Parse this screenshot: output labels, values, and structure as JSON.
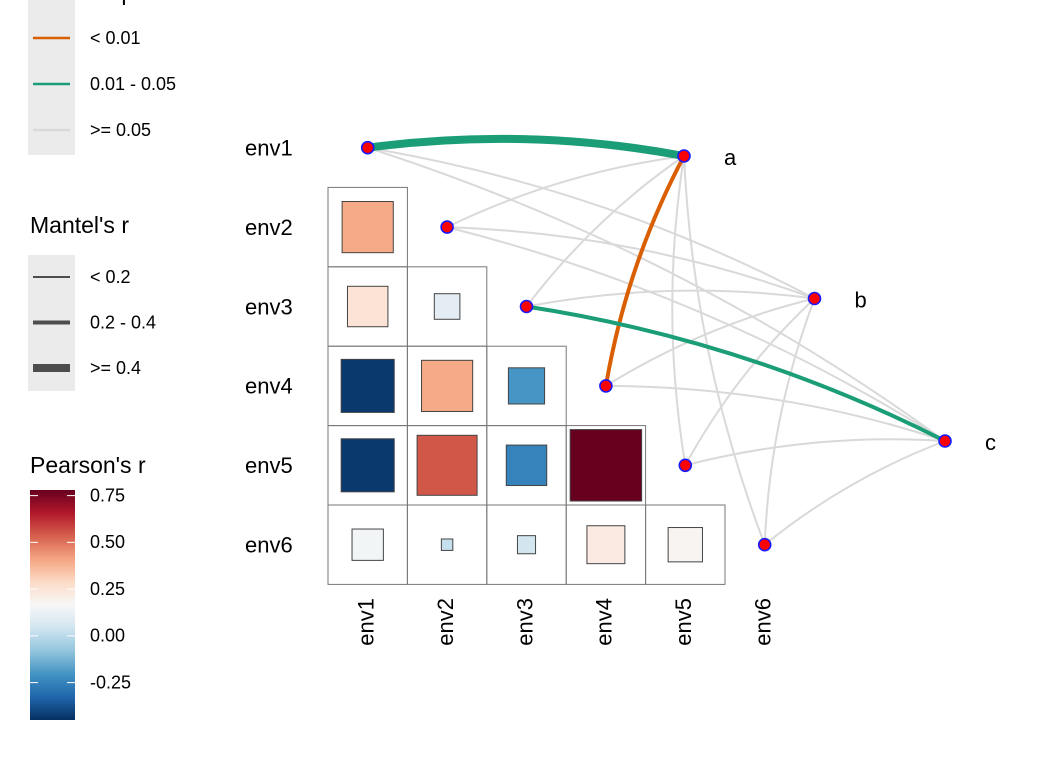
{
  "chart_data": {
    "type": "correlogram",
    "rows": [
      "env1",
      "env2",
      "env3",
      "env4",
      "env5",
      "env6"
    ],
    "columns": [
      "env1",
      "env2",
      "env3",
      "env4",
      "env5",
      "env6"
    ],
    "values": [
      [
        null,
        null,
        null,
        null,
        null,
        null
      ],
      [
        0.4,
        null,
        null,
        null,
        null,
        null
      ],
      [
        0.25,
        0.1,
        null,
        null,
        null,
        null
      ],
      [
        -0.43,
        0.4,
        -0.2,
        null,
        null,
        null
      ],
      [
        -0.43,
        0.55,
        -0.25,
        0.78,
        null,
        null
      ],
      [
        0.15,
        0.02,
        0.05,
        0.22,
        0.18,
        null
      ]
    ],
    "colorbar": {
      "title": "Pearson's r",
      "lim": [
        -0.45,
        0.78
      ],
      "ticks": [
        0.75,
        {
          "value": 0.5,
          "label": "0.50"
        },
        0.25,
        {
          "value": 0,
          "label": "0.00"
        },
        -0.25
      ],
      "colors": [
        "#053061",
        "#2166ac",
        "#4393c3",
        "#92c5de",
        "#d1e5f0",
        "#f7f7f7",
        "#fddbc7",
        "#f4a582",
        "#d6604d",
        "#b2182b",
        "#67001f"
      ]
    },
    "specs": [
      "a",
      "b",
      "c"
    ],
    "mantel": [
      {
        "spec": "a",
        "env": "env1",
        "r": 0.45,
        "p": 0.03
      },
      {
        "spec": "a",
        "env": "env2",
        "r": 0.1,
        "p": 0.3
      },
      {
        "spec": "a",
        "env": "env3",
        "r": 0.12,
        "p": 0.25
      },
      {
        "spec": "a",
        "env": "env4",
        "r": 0.3,
        "p": 0.005
      },
      {
        "spec": "a",
        "env": "env5",
        "r": 0.08,
        "p": 0.4
      },
      {
        "spec": "a",
        "env": "env6",
        "r": 0.1,
        "p": 0.35
      },
      {
        "spec": "b",
        "env": "env1",
        "r": 0.1,
        "p": 0.3
      },
      {
        "spec": "b",
        "env": "env2",
        "r": 0.12,
        "p": 0.2
      },
      {
        "spec": "b",
        "env": "env3",
        "r": 0.08,
        "p": 0.4
      },
      {
        "spec": "b",
        "env": "env4",
        "r": 0.1,
        "p": 0.3
      },
      {
        "spec": "b",
        "env": "env5",
        "r": 0.12,
        "p": 0.25
      },
      {
        "spec": "b",
        "env": "env6",
        "r": 0.1,
        "p": 0.35
      },
      {
        "spec": "c",
        "env": "env1",
        "r": 0.1,
        "p": 0.3
      },
      {
        "spec": "c",
        "env": "env2",
        "r": 0.12,
        "p": 0.2
      },
      {
        "spec": "c",
        "env": "env3",
        "r": 0.3,
        "p": 0.03
      },
      {
        "spec": "c",
        "env": "env4",
        "r": 0.1,
        "p": 0.3
      },
      {
        "spec": "c",
        "env": "env5",
        "r": 0.12,
        "p": 0.25
      },
      {
        "spec": "c",
        "env": "env6",
        "r": 0.1,
        "p": 0.35
      }
    ],
    "mantel_p_legend": {
      "title": "Mantel's p",
      "breaks": [
        0.01,
        0.05
      ],
      "labels": [
        "< 0.01",
        "0.01 - 0.05",
        ">= 0.05"
      ],
      "colors": [
        "#d95f02",
        "#1b9e77",
        "#d9d9d9"
      ]
    },
    "mantel_r_legend": {
      "title": "Mantel's r",
      "breaks": [
        0.2,
        0.4
      ],
      "labels": [
        "< 0.2",
        "0.2 - 0.4",
        ">= 0.4"
      ]
    }
  }
}
